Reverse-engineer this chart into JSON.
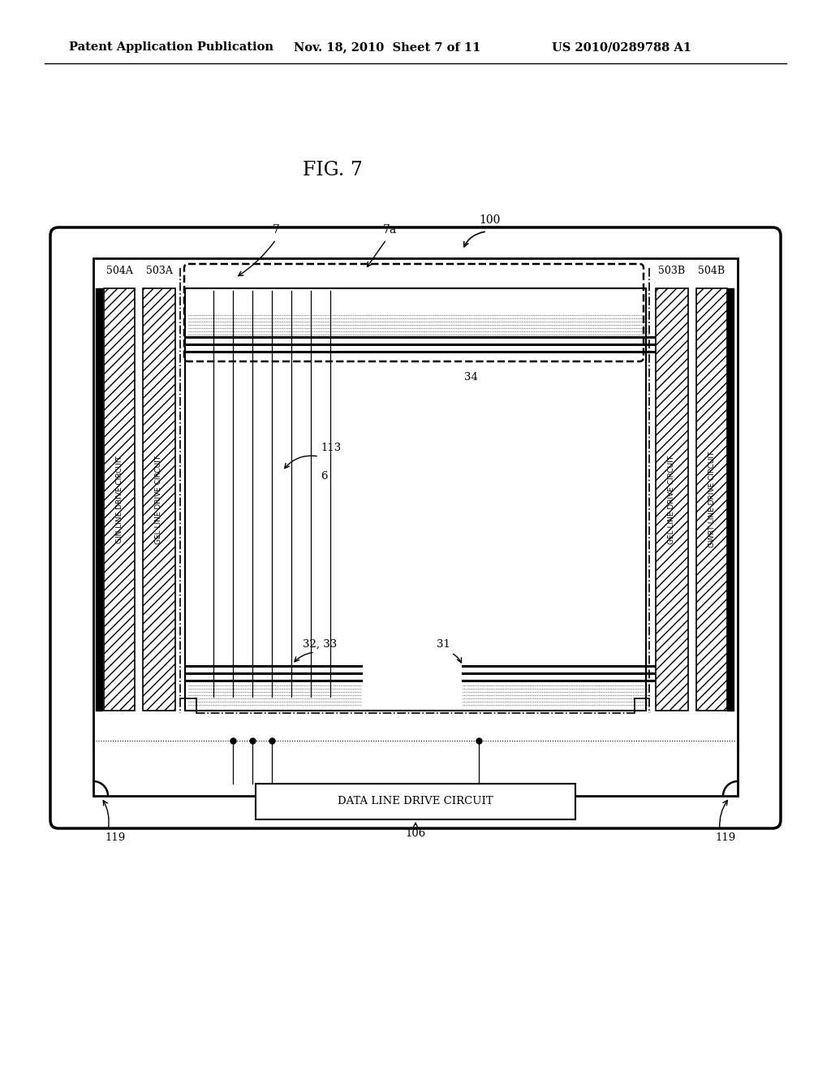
{
  "bg_color": "#ffffff",
  "header_left": "Patent Application Publication",
  "header_mid": "Nov. 18, 2010  Sheet 7 of 11",
  "header_right": "US 2010/0289788 A1",
  "fig_title": "FIG. 7",
  "gin_text": "GIN LINE DRIVE CIRCUIT",
  "gel_text_left": "GEL LINE DRIVE CIRCUIT",
  "gel_text_right": "GEL LINE DRIVE CIRCUIT",
  "gwrt_text": "GWRT LINE DRIVE CIRCUIT",
  "data_line_text": "DATA LINE DRIVE CIRCUIT",
  "label_100": "100",
  "label_7": "7",
  "label_7a": "7a",
  "label_504A": "504A",
  "label_503A": "503A",
  "label_503B": "503B",
  "label_504B": "504B",
  "label_34": "34",
  "label_113": "113",
  "label_6": "6",
  "label_32_33": "32, 33",
  "label_31": "31",
  "label_119": "119",
  "label_106": "106"
}
